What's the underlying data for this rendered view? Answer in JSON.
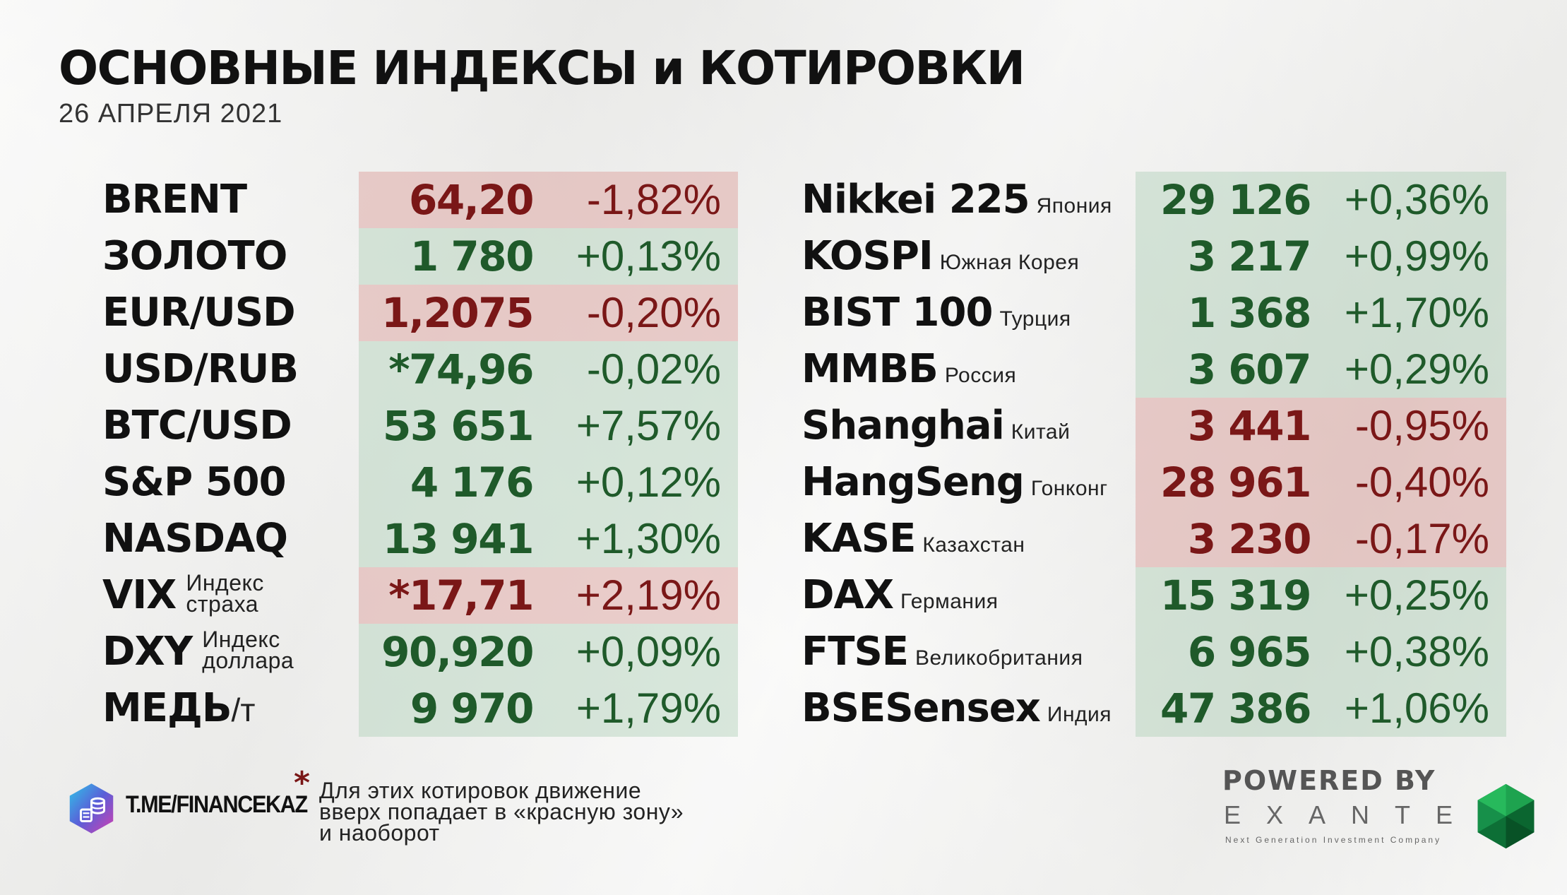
{
  "title": "ОСНОВНЫЕ ИНДЕКСЫ и КОТИРОВКИ",
  "date": "26 АПРЕЛЯ 2021",
  "colors": {
    "positive": "#1f5a2a",
    "negative": "#7a1717",
    "positive_bg": "#cfdfd2",
    "negative_bg": "#e5cbc8"
  },
  "left": [
    {
      "name": "BRENT",
      "value": "64,20",
      "change": "-1,82%",
      "zone": "red"
    },
    {
      "name": "ЗОЛОТО",
      "value": "1 780",
      "change": "+0,13%",
      "zone": "green"
    },
    {
      "name": "EUR/USD",
      "value": "1,2075",
      "change": "-0,20%",
      "zone": "red"
    },
    {
      "name": "USD/RUB",
      "value": "*74,96",
      "change": "-0,02%",
      "zone": "green"
    },
    {
      "name": "BTC/USD",
      "value": "53 651",
      "change": "+7,57%",
      "zone": "green"
    },
    {
      "name": "S&P 500",
      "value": "4 176",
      "change": "+0,12%",
      "zone": "green"
    },
    {
      "name": "NASDAQ",
      "value": "13 941",
      "change": "+1,30%",
      "zone": "green"
    },
    {
      "name": "VIX",
      "sub1": "Индекс",
      "sub2": "страха",
      "value": "*17,71",
      "change": "+2,19%",
      "zone": "red"
    },
    {
      "name": "DXY",
      "sub1": "Индекс",
      "sub2": "доллара",
      "value": "90,920",
      "change": "+0,09%",
      "zone": "green"
    },
    {
      "name": "МЕДЬ",
      "unit": "/т",
      "value": "9 970",
      "change": "+1,79%",
      "zone": "green"
    }
  ],
  "right": [
    {
      "name": "Nikkei 225",
      "sub": "Япония",
      "value": "29 126",
      "change": "+0,36%",
      "zone": "green"
    },
    {
      "name": "KOSPI",
      "sub": "Южная Корея",
      "value": "3 217",
      "change": "+0,99%",
      "zone": "green"
    },
    {
      "name": "BIST 100",
      "sub": "Турция",
      "value": "1 368",
      "change": "+1,70%",
      "zone": "green"
    },
    {
      "name": "ММВБ",
      "sub": "Россия",
      "value": "3 607",
      "change": "+0,29%",
      "zone": "green"
    },
    {
      "name": "Shanghai",
      "sub": "Китай",
      "value": "3 441",
      "change": "-0,95%",
      "zone": "red"
    },
    {
      "name": "HangSeng",
      "sub": "Гонконг",
      "value": "28 961",
      "change": "-0,40%",
      "zone": "red"
    },
    {
      "name": "KASE",
      "sub": "Казахстан",
      "value": "3 230",
      "change": "-0,17%",
      "zone": "red"
    },
    {
      "name": "DAX",
      "sub": "Германия",
      "value": "15 319",
      "change": "+0,25%",
      "zone": "green"
    },
    {
      "name": "FTSE",
      "sub": "Великобритания",
      "value": "6 965",
      "change": "+0,38%",
      "zone": "green"
    },
    {
      "name": "BSESensex",
      "sub": "Индия",
      "value": "47 386",
      "change": "+1,06%",
      "zone": "green"
    }
  ],
  "footer": {
    "telegram": "T.ME/FINANCEKAZ",
    "asterisk": "*",
    "footnote": "Для этих котировок движение\nвверх попадает в «красную зону»\nи наоборот",
    "powered_by": "POWERED BY",
    "brand": "EXANTE",
    "tagline": "Next Generation Investment Company"
  }
}
